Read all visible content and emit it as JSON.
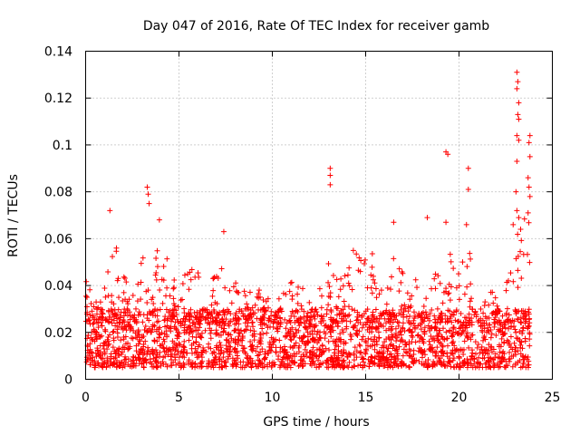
{
  "chart_data": {
    "type": "scatter",
    "title": "Day 047 of 2016, Rate Of TEC Index for receiver gamb",
    "xlabel": "GPS time / hours",
    "ylabel": "ROTI / TECUs",
    "xlim": [
      0,
      25
    ],
    "ylim": [
      0,
      0.14
    ],
    "xticks": [
      0,
      5,
      10,
      15,
      20,
      25
    ],
    "xtick_labels": [
      "0",
      "5",
      "10",
      "15",
      "20",
      "25"
    ],
    "yticks": [
      0,
      0.02,
      0.04,
      0.06,
      0.08,
      0.1,
      0.12,
      0.14
    ],
    "ytick_labels": [
      "0",
      "0.02",
      "0.04",
      "0.06",
      "0.08",
      "0.1",
      "0.12",
      "0.14"
    ],
    "grid": true,
    "marker": "+",
    "color": "#ff0000",
    "data_range_hours": [
      0,
      23.8
    ],
    "envelope": {
      "x": [
        0,
        0.5,
        1,
        1.3,
        1.7,
        2,
        2.5,
        3,
        3.3,
        3.5,
        4,
        4.5,
        5,
        5.5,
        6,
        6.5,
        7,
        7.5,
        8,
        8.5,
        9,
        9.5,
        10,
        10.5,
        11,
        11.5,
        12,
        12.5,
        13,
        13.5,
        14,
        14.5,
        15,
        15.5,
        16,
        16.5,
        17,
        17.5,
        18,
        18.5,
        19,
        19.5,
        20,
        20.5,
        21,
        21.5,
        22,
        22.5,
        23,
        23.3,
        23.6,
        23.8
      ],
      "peak": [
        0.048,
        0.042,
        0.05,
        0.068,
        0.055,
        0.045,
        0.047,
        0.05,
        0.072,
        0.064,
        0.058,
        0.05,
        0.055,
        0.046,
        0.05,
        0.04,
        0.045,
        0.055,
        0.045,
        0.04,
        0.037,
        0.04,
        0.037,
        0.038,
        0.045,
        0.042,
        0.04,
        0.042,
        0.05,
        0.045,
        0.05,
        0.058,
        0.06,
        0.052,
        0.045,
        0.055,
        0.045,
        0.042,
        0.05,
        0.047,
        0.055,
        0.055,
        0.048,
        0.06,
        0.055,
        0.04,
        0.035,
        0.045,
        0.06,
        0.07,
        0.085,
        0.06
      ],
      "typical_band": [
        0.005,
        0.03
      ]
    },
    "outliers": [
      {
        "x": 3.3,
        "y": 0.082
      },
      {
        "x": 3.35,
        "y": 0.079
      },
      {
        "x": 3.4,
        "y": 0.075
      },
      {
        "x": 1.3,
        "y": 0.072
      },
      {
        "x": 3.95,
        "y": 0.068
      },
      {
        "x": 7.4,
        "y": 0.063
      },
      {
        "x": 13.1,
        "y": 0.09
      },
      {
        "x": 13.1,
        "y": 0.087
      },
      {
        "x": 13.1,
        "y": 0.083
      },
      {
        "x": 16.5,
        "y": 0.067
      },
      {
        "x": 18.3,
        "y": 0.069
      },
      {
        "x": 19.3,
        "y": 0.097
      },
      {
        "x": 19.4,
        "y": 0.096
      },
      {
        "x": 19.3,
        "y": 0.067
      },
      {
        "x": 20.5,
        "y": 0.09
      },
      {
        "x": 20.5,
        "y": 0.081
      },
      {
        "x": 20.4,
        "y": 0.066
      },
      {
        "x": 23.1,
        "y": 0.131
      },
      {
        "x": 23.15,
        "y": 0.127
      },
      {
        "x": 23.1,
        "y": 0.124
      },
      {
        "x": 23.2,
        "y": 0.118
      },
      {
        "x": 23.15,
        "y": 0.113
      },
      {
        "x": 23.2,
        "y": 0.111
      },
      {
        "x": 23.1,
        "y": 0.104
      },
      {
        "x": 23.2,
        "y": 0.102
      },
      {
        "x": 23.8,
        "y": 0.104
      },
      {
        "x": 23.75,
        "y": 0.101
      },
      {
        "x": 23.8,
        "y": 0.095
      },
      {
        "x": 23.1,
        "y": 0.093
      },
      {
        "x": 23.7,
        "y": 0.086
      },
      {
        "x": 23.75,
        "y": 0.082
      },
      {
        "x": 23.8,
        "y": 0.078
      },
      {
        "x": 23.05,
        "y": 0.08
      },
      {
        "x": 23.1,
        "y": 0.072
      },
      {
        "x": 23.2,
        "y": 0.069
      },
      {
        "x": 23.7,
        "y": 0.071
      },
      {
        "x": 23.3,
        "y": 0.064
      },
      {
        "x": 22.9,
        "y": 0.066
      }
    ]
  }
}
